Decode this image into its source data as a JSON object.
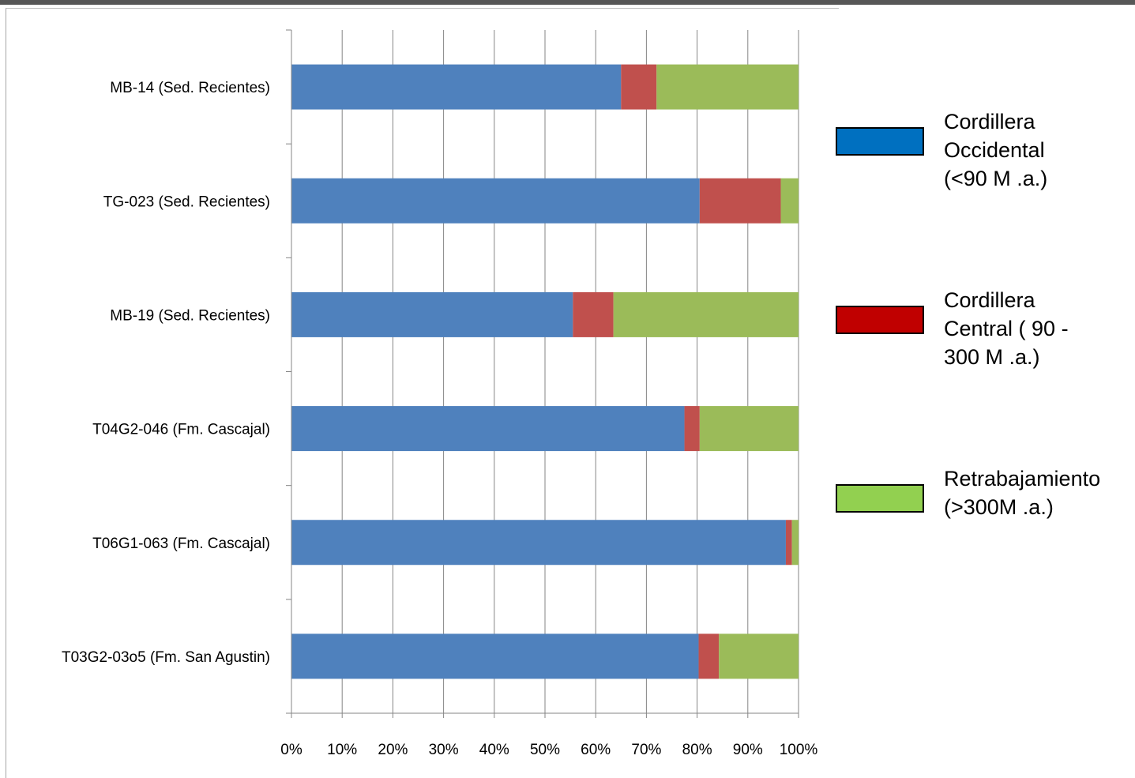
{
  "chart_data": {
    "type": "bar",
    "orientation": "horizontal",
    "stacked": "percent",
    "categories": [
      "MB-14 (Sed. Recientes)",
      "TG-023 (Sed. Recientes)",
      "MB-19 (Sed. Recientes)",
      "T04G2-046 (Fm. Cascajal)",
      "T06G1-063 (Fm. Cascajal)",
      "T03G2-03o5 (Fm. San Agustin)"
    ],
    "series": [
      {
        "name": "Cordillera Occidental (<90 M .a.)",
        "color": "#4f81bd",
        "values": [
          65,
          80.5,
          55.5,
          77.5,
          97.5,
          80.3
        ]
      },
      {
        "name": "Cordillera Central ( 90 - 300 M .a.)",
        "color": "#c0504d",
        "values": [
          7,
          16,
          8,
          3,
          1.2,
          4
        ]
      },
      {
        "name": "Retrabajamiento (>300M .a.)",
        "color": "#9bbb59",
        "values": [
          28,
          3.5,
          36.5,
          19.5,
          1.3,
          15.7
        ]
      }
    ],
    "xticks": [
      "0%",
      "10%",
      "20%",
      "30%",
      "40%",
      "50%",
      "60%",
      "70%",
      "80%",
      "90%",
      "100%"
    ],
    "xlim": [
      0,
      100
    ],
    "grid": true,
    "legend_position": "right"
  },
  "legend": {
    "items": [
      {
        "label": "Cordillera\nOccidental\n(<90 M .a.)",
        "color": "#0070c0"
      },
      {
        "label": "Cordillera\nCentral ( 90 -\n300 M .a.)",
        "color": "#c00000"
      },
      {
        "label": "Retrabajamiento\n(>300M .a.)",
        "color": "#92d050"
      }
    ]
  }
}
